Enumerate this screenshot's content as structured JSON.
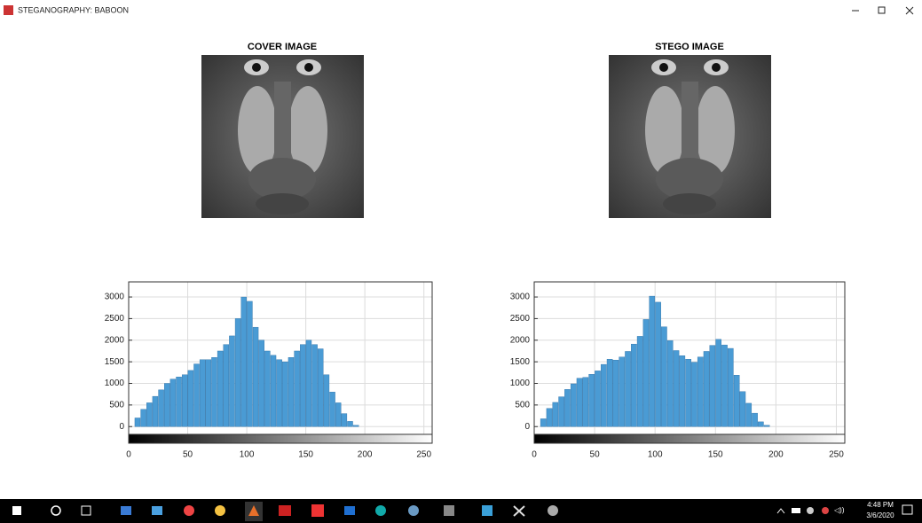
{
  "window": {
    "title": "STEGANOGRAPHY: BABOON"
  },
  "panels": [
    {
      "title": "COVER IMAGE"
    },
    {
      "title": "STEGO IMAGE"
    }
  ],
  "chart_data": [
    {
      "type": "histogram",
      "bins": [
        0,
        5,
        10,
        15,
        20,
        25,
        30,
        35,
        40,
        45,
        50,
        55,
        60,
        65,
        70,
        75,
        80,
        85,
        90,
        95,
        100,
        105,
        110,
        115,
        120,
        125,
        130,
        135,
        140,
        145,
        150,
        155,
        160,
        165,
        170,
        175,
        180,
        185,
        190,
        195,
        200,
        205,
        210,
        215,
        220,
        225,
        230,
        235,
        240,
        245,
        250,
        255
      ],
      "values": [
        0,
        200,
        400,
        550,
        700,
        850,
        1000,
        1100,
        1150,
        1200,
        1300,
        1450,
        1550,
        1550,
        1600,
        1750,
        1900,
        2100,
        2500,
        3000,
        2900,
        2300,
        2000,
        1750,
        1650,
        1550,
        1500,
        1600,
        1750,
        1900,
        2000,
        1900,
        1800,
        1200,
        800,
        550,
        300,
        120,
        30,
        0,
        0,
        0,
        0,
        0,
        0,
        0,
        0,
        0,
        0,
        0,
        0
      ],
      "color": "#4a9bd4",
      "xlim": [
        0,
        257
      ],
      "xticks": [
        0,
        50,
        100,
        150,
        200,
        250
      ],
      "ylim": [
        -180,
        3350
      ],
      "yticks": [
        0,
        500,
        1000,
        1500,
        2000,
        2500,
        3000
      ],
      "grid": true
    },
    {
      "type": "histogram",
      "bins": [
        0,
        5,
        10,
        15,
        20,
        25,
        30,
        35,
        40,
        45,
        50,
        55,
        60,
        65,
        70,
        75,
        80,
        85,
        90,
        95,
        100,
        105,
        110,
        115,
        120,
        125,
        130,
        135,
        140,
        145,
        150,
        155,
        160,
        165,
        170,
        175,
        180,
        185,
        190,
        195,
        200,
        205,
        210,
        215,
        220,
        225,
        230,
        235,
        240,
        245,
        250,
        255
      ],
      "values": [
        0,
        180,
        420,
        560,
        690,
        860,
        990,
        1120,
        1140,
        1210,
        1290,
        1440,
        1560,
        1540,
        1610,
        1740,
        1910,
        2090,
        2480,
        3020,
        2880,
        2310,
        1990,
        1760,
        1640,
        1560,
        1490,
        1610,
        1740,
        1880,
        2020,
        1890,
        1810,
        1190,
        810,
        540,
        310,
        110,
        30,
        0,
        0,
        0,
        0,
        0,
        0,
        0,
        0,
        0,
        0,
        0,
        0
      ],
      "color": "#4a9bd4",
      "xlim": [
        0,
        257
      ],
      "xticks": [
        0,
        50,
        100,
        150,
        200,
        250
      ],
      "ylim": [
        -180,
        3350
      ],
      "yticks": [
        0,
        500,
        1000,
        1500,
        2000,
        2500,
        3000
      ],
      "grid": true
    }
  ],
  "taskbar": {
    "time": "4:48 PM",
    "date": "3/6/2020"
  }
}
